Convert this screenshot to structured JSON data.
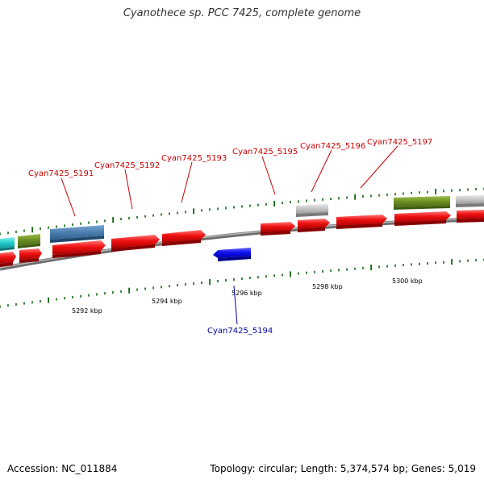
{
  "title": "Cyanothece sp. PCC 7425, complete genome",
  "footer": {
    "accession": "Accession: NC_011884",
    "info": "Topology: circular; Length: 5,374,574 bp; Genes: 5,019"
  },
  "colors": {
    "forward_cds": "#ee1111",
    "reverse_cds": "#1111ee",
    "trna": "#33cccc",
    "rrna": "#6b8e23",
    "other_rna": "#4a7fb0",
    "pseudo": "#bbbbbb",
    "label_forward": "#cc0000",
    "label_reverse": "#0000aa",
    "tick": "#116611",
    "backbone": "#888888"
  },
  "scale": {
    "labels": [
      "5292 kbp",
      "5294 kbp",
      "5296 kbp",
      "5298 kbp",
      "5300 kbp"
    ]
  },
  "gene_labels": [
    {
      "id": "g5191",
      "text": "Cyan7425_5191",
      "strand": "forward"
    },
    {
      "id": "g5192",
      "text": "Cyan7425_5192",
      "strand": "forward"
    },
    {
      "id": "g5193",
      "text": "Cyan7425_5193",
      "strand": "forward"
    },
    {
      "id": "g5195",
      "text": "Cyan7425_5195",
      "strand": "forward"
    },
    {
      "id": "g5196",
      "text": "Cyan7425_5196",
      "strand": "forward"
    },
    {
      "id": "g5197",
      "text": "Cyan7425_5197",
      "strand": "forward"
    },
    {
      "id": "g5194",
      "text": "Cyan7425_5194",
      "strand": "reverse"
    }
  ]
}
